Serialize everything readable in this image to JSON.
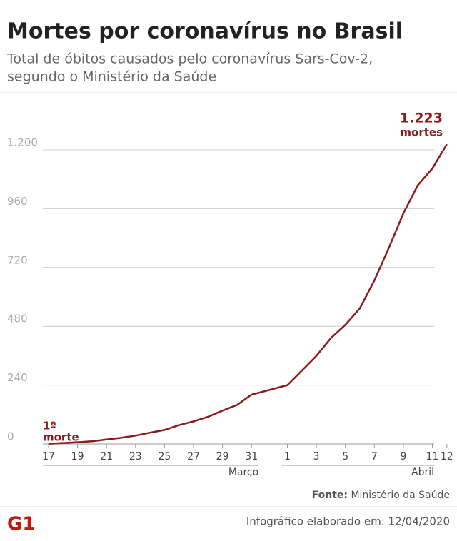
{
  "chart_data": {
    "type": "line",
    "title": "Mortes por coronavírus no Brasil",
    "subtitle": [
      "Total de óbitos causados pelo coronavírus Sars-Cov-2,",
      "segundo o Ministério da Saúde"
    ],
    "color": "#8b1a1a",
    "groups": [
      {
        "month": "Março",
        "categories": [
          "17",
          null,
          "19",
          null,
          "21",
          null,
          "23",
          null,
          "25",
          null,
          "27",
          null,
          "29",
          null,
          "31"
        ],
        "values": [
          1,
          4,
          7,
          11,
          18,
          25,
          34,
          46,
          57,
          77,
          92,
          111,
          136,
          159,
          201
        ]
      },
      {
        "month": "Abril",
        "categories": [
          "1",
          null,
          "3",
          null,
          "5",
          null,
          "7",
          null,
          "9",
          null,
          "11",
          "12"
        ],
        "values": [
          240,
          299,
          359,
          432,
          486,
          553,
          667,
          800,
          941,
          1056,
          1124,
          1223
        ]
      }
    ],
    "ylim": [
      0,
      1200
    ],
    "yticks": [
      0,
      240,
      480,
      720,
      960,
      {
        "value": 1200,
        "label": "1.200"
      }
    ],
    "grid": true,
    "annotations": [
      {
        "lines": [
          "1ª",
          "morte"
        ]
      },
      {
        "lines": [
          "1.223",
          "mortes"
        ]
      }
    ],
    "source": {
      "label": "Fonte:",
      "text": "Ministério da Saúde"
    },
    "footer": "Infográfico elaborado em: 12/04/2020",
    "logo": "G1"
  }
}
